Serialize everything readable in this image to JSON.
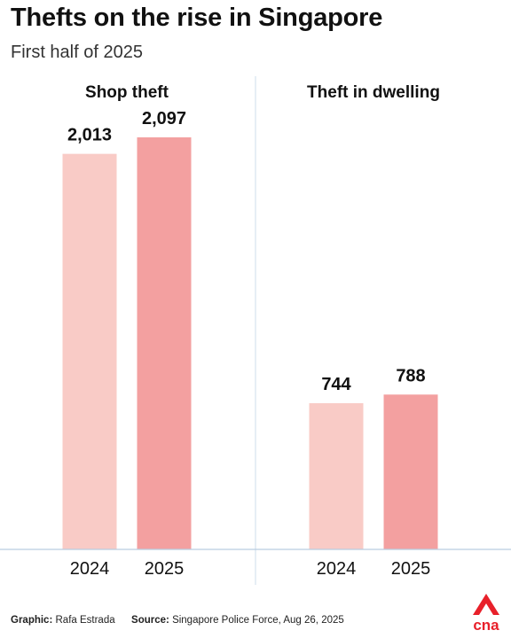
{
  "title": "Thefts on the rise in Singapore",
  "subtitle": "First half of 2025",
  "footer": {
    "graphic_label": "Graphic:",
    "graphic_value": "Rafa Estrada",
    "source_label": "Source:",
    "source_value": "Singapore Police Force, Aug 26, 2025"
  },
  "logo": {
    "icon": "cna-logo-icon",
    "text": "cna"
  },
  "colors": {
    "bar_2024": "#f9cbc6",
    "bar_2025": "#f3a0a0",
    "axis": "#b9cde0",
    "divider": "#d6e2ee",
    "logo_red": "#e8202a"
  },
  "chart_data": [
    {
      "type": "bar",
      "title": "Shop theft",
      "categories": [
        "2024",
        "2025"
      ],
      "values": [
        2013,
        2097
      ],
      "value_labels": [
        "2,013",
        "2,097"
      ],
      "ylim": [
        0,
        2300
      ],
      "grid": false
    },
    {
      "type": "bar",
      "title": "Theft in dwelling",
      "categories": [
        "2024",
        "2025"
      ],
      "values": [
        744,
        788
      ],
      "value_labels": [
        "744",
        "788"
      ],
      "ylim": [
        0,
        2300
      ],
      "grid": false
    }
  ]
}
